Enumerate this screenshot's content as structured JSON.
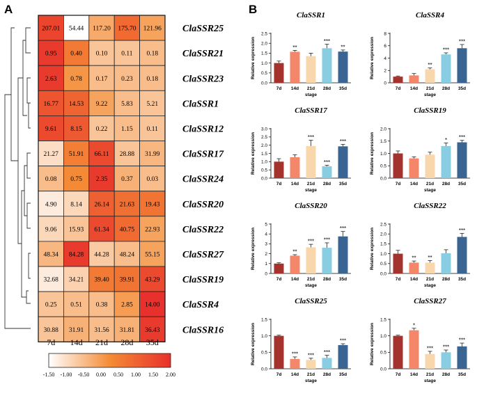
{
  "panels": {
    "a": "A",
    "b": "B"
  },
  "chart_data": [
    {
      "type": "heatmap",
      "panel": "A",
      "columns": [
        "7d",
        "14d",
        "21d",
        "28d",
        "35d"
      ],
      "rows": [
        {
          "gene": "ClaSSR25",
          "values": [
            207.01,
            54.44,
            117.2,
            175.7,
            121.96
          ],
          "labels": [
            "207.01",
            "54.44",
            "117.20",
            "175.70",
            "121.96"
          ],
          "z": [
            1.6,
            -1.5,
            -0.2,
            0.9,
            -0.1
          ]
        },
        {
          "gene": "ClaSSR21",
          "values": [
            0.95,
            0.4,
            0.1,
            0.11,
            0.18
          ],
          "labels": [
            "0.95",
            "0.40",
            "0.10",
            "0.11",
            "0.18"
          ],
          "z": [
            1.8,
            0.6,
            -0.6,
            -0.6,
            -0.5
          ]
        },
        {
          "gene": "ClaSSR23",
          "values": [
            2.63,
            0.78,
            0.17,
            0.23,
            0.18
          ],
          "labels": [
            "2.63",
            "0.78",
            "0.17",
            "0.23",
            "0.18"
          ],
          "z": [
            1.8,
            0.1,
            -0.5,
            -0.5,
            -0.5
          ]
        },
        {
          "gene": "ClaSSR1",
          "values": [
            16.77,
            14.53,
            9.22,
            5.83,
            5.21
          ],
          "labels": [
            "16.77",
            "14.53",
            "9.22",
            "5.83",
            "5.21"
          ],
          "z": [
            1.3,
            1.0,
            -0.1,
            -0.5,
            -0.6
          ]
        },
        {
          "gene": "ClaSSR12",
          "values": [
            9.61,
            8.15,
            0.22,
            1.15,
            0.11
          ],
          "labels": [
            "9.61",
            "8.15",
            "0.22",
            "1.15",
            "0.11"
          ],
          "z": [
            1.5,
            1.2,
            -0.6,
            -0.5,
            -0.6
          ]
        },
        {
          "gene": "ClaSSR17",
          "values": [
            21.27,
            51.91,
            66.11,
            28.88,
            31.99
          ],
          "labels": [
            "21.27",
            "51.91",
            "66.11",
            "28.88",
            "31.99"
          ],
          "z": [
            -1.0,
            0.5,
            1.5,
            -0.6,
            -0.4
          ]
        },
        {
          "gene": "ClaSSR24",
          "values": [
            0.08,
            0.75,
            2.35,
            0.37,
            0.03
          ],
          "labels": [
            "0.08",
            "0.75",
            "2.35",
            "0.37",
            "0.03"
          ],
          "z": [
            -0.5,
            0.3,
            1.8,
            -0.3,
            -0.5
          ]
        },
        {
          "gene": "ClaSSR20",
          "values": [
            4.9,
            8.14,
            26.14,
            21.63,
            19.43
          ],
          "labels": [
            "4.90",
            "8.14",
            "26.14",
            "21.63",
            "19.43"
          ],
          "z": [
            -1.2,
            -0.9,
            1.1,
            0.8,
            0.7
          ]
        },
        {
          "gene": "ClaSSR22",
          "values": [
            9.06,
            15.93,
            61.34,
            40.75,
            22.93
          ],
          "labels": [
            "9.06",
            "15.93",
            "61.34",
            "40.75",
            "22.93"
          ],
          "z": [
            -0.9,
            -0.6,
            1.5,
            0.9,
            -0.1
          ]
        },
        {
          "gene": "ClaSSR27",
          "values": [
            48.34,
            84.28,
            44.28,
            48.24,
            55.15
          ],
          "labels": [
            "48.34",
            "84.28",
            "44.28",
            "48.24",
            "55.15"
          ],
          "z": [
            -0.4,
            1.8,
            -0.7,
            -0.5,
            -0.1
          ]
        },
        {
          "gene": "ClaSSR19",
          "values": [
            32.68,
            34.21,
            39.4,
            39.91,
            43.29
          ],
          "labels": [
            "32.68",
            "34.21",
            "39.40",
            "39.91",
            "43.29"
          ],
          "z": [
            -1.2,
            -0.8,
            0.6,
            0.7,
            1.5
          ]
        },
        {
          "gene": "ClaSSR4",
          "values": [
            0.25,
            0.51,
            0.38,
            2.85,
            14.0
          ],
          "labels": [
            "0.25",
            "0.51",
            "0.38",
            "2.85",
            "14.00"
          ],
          "z": [
            -0.6,
            -0.5,
            -0.5,
            0.0,
            2.0
          ]
        },
        {
          "gene": "ClaSSR16",
          "values": [
            30.88,
            31.91,
            31.56,
            31.81,
            36.43
          ],
          "labels": [
            "30.88",
            "31.91",
            "31.56",
            "31.81",
            "36.43"
          ],
          "z": [
            -0.6,
            -0.3,
            -0.5,
            -0.3,
            1.8
          ]
        }
      ],
      "colorbar": {
        "range": [
          -1.5,
          2.0
        ],
        "ticks": [
          "-1.50",
          "-1.00",
          "-0.50",
          "0.00",
          "0.50",
          "1.00",
          "1.50",
          "2.00"
        ],
        "colors": [
          "#ffffff",
          "#f48c36",
          "#e8302c"
        ]
      },
      "dendrogram": "hierarchical clustering of rows (left side)"
    },
    {
      "type": "bar",
      "panel": "B",
      "xlabel": "stage",
      "ylabel": "Relative expression",
      "categories": [
        "7d",
        "14d",
        "21d",
        "28d",
        "35d"
      ],
      "bar_colors": [
        "#a5332d",
        "#f4876a",
        "#f9d7ad",
        "#88cde2",
        "#3a6592"
      ],
      "plots": [
        {
          "title": "ClaSSR1",
          "ylim": [
            0,
            2.5
          ],
          "yticks": [
            "0.0",
            "0.5",
            "1.0",
            "1.5",
            "2.0",
            "2.5"
          ],
          "values": [
            1.0,
            1.57,
            1.35,
            1.75,
            1.58
          ],
          "errors": [
            0.1,
            0.07,
            0.15,
            0.2,
            0.08
          ],
          "sig": [
            "",
            "**",
            "",
            "***",
            "**"
          ]
        },
        {
          "title": "ClaSSR4",
          "ylim": [
            0,
            8
          ],
          "yticks": [
            "0",
            "2",
            "4",
            "6",
            "8"
          ],
          "values": [
            1.0,
            1.2,
            2.2,
            4.6,
            5.6
          ],
          "errors": [
            0.1,
            0.3,
            0.2,
            0.25,
            0.6
          ],
          "sig": [
            "",
            "",
            "**",
            "***",
            "***"
          ]
        },
        {
          "title": "ClaSSR17",
          "ylim": [
            0,
            3.0
          ],
          "yticks": [
            "0.0",
            "0.5",
            "1.0",
            "1.5",
            "2.0",
            "2.5",
            "3.0"
          ],
          "values": [
            1.0,
            1.27,
            1.95,
            0.72,
            1.93
          ],
          "errors": [
            0.18,
            0.15,
            0.35,
            0.06,
            0.12
          ],
          "sig": [
            "",
            "",
            "***",
            "***",
            "***"
          ]
        },
        {
          "title": "ClaSSR19",
          "ylim": [
            0,
            2.0
          ],
          "yticks": [
            "0.0",
            "0.5",
            "1.0",
            "1.5",
            "2.0"
          ],
          "values": [
            1.0,
            0.8,
            0.95,
            1.3,
            1.45
          ],
          "errors": [
            0.1,
            0.06,
            0.1,
            0.12,
            0.08
          ],
          "sig": [
            "",
            "",
            "",
            "*",
            "***"
          ]
        },
        {
          "title": "ClaSSR20",
          "ylim": [
            0,
            5
          ],
          "yticks": [
            "0",
            "1",
            "2",
            "3",
            "4",
            "5"
          ],
          "values": [
            1.0,
            1.8,
            2.65,
            2.6,
            3.75
          ],
          "errors": [
            0.08,
            0.1,
            0.3,
            0.5,
            0.5
          ],
          "sig": [
            "",
            "**",
            "***",
            "***",
            "***"
          ]
        },
        {
          "title": "ClaSSR22",
          "ylim": [
            0,
            2.5
          ],
          "yticks": [
            "0.0",
            "0.5",
            "1.0",
            "1.5",
            "2.0",
            "2.5"
          ],
          "values": [
            1.0,
            0.55,
            0.55,
            1.02,
            1.85
          ],
          "errors": [
            0.17,
            0.08,
            0.1,
            0.18,
            0.18
          ],
          "sig": [
            "",
            "**",
            "**",
            "",
            "***"
          ]
        },
        {
          "title": "ClaSSR25",
          "ylim": [
            0,
            1.5
          ],
          "yticks": [
            "0.0",
            "0.5",
            "1.0",
            "1.5"
          ],
          "values": [
            1.0,
            0.3,
            0.27,
            0.33,
            0.72
          ],
          "errors": [
            0.02,
            0.06,
            0.05,
            0.08,
            0.04
          ],
          "sig": [
            "",
            "***",
            "***",
            "***",
            "***"
          ]
        },
        {
          "title": "ClaSSR27",
          "ylim": [
            0,
            1.5
          ],
          "yticks": [
            "0.0",
            "0.5",
            "1.0",
            "1.5"
          ],
          "values": [
            1.0,
            1.17,
            0.45,
            0.5,
            0.68
          ],
          "errors": [
            0.02,
            0.06,
            0.08,
            0.07,
            0.1
          ],
          "sig": [
            "",
            "*",
            "***",
            "***",
            "***"
          ]
        }
      ]
    }
  ]
}
